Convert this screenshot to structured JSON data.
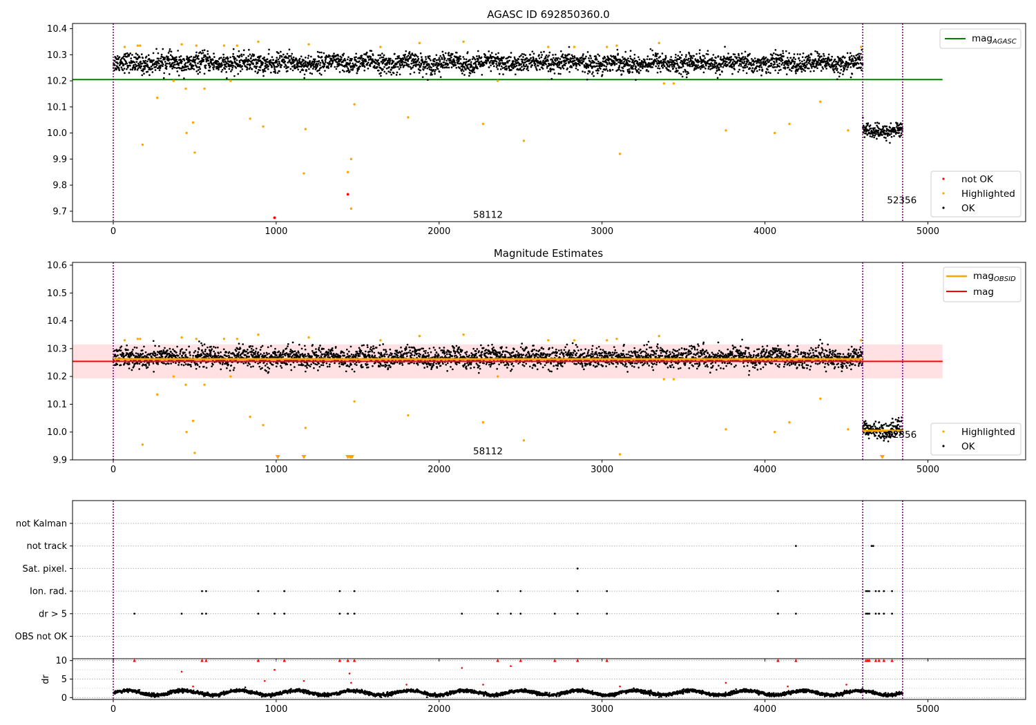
{
  "chart_data": [
    {
      "type": "scatter",
      "title": "AGASC ID 692850360.0",
      "xlabel": "",
      "ylabel": "",
      "xlim": [
        -250,
        5600
      ],
      "ylim": [
        9.66,
        10.42
      ],
      "xticks": [
        0,
        1000,
        2000,
        3000,
        4000,
        5000
      ],
      "yticks": [
        9.7,
        9.8,
        9.9,
        10.0,
        10.1,
        10.2,
        10.3,
        10.4
      ],
      "vlines": [
        0,
        4600,
        4845
      ],
      "grid": false,
      "legends": {
        "top_right": [
          {
            "name": "mag",
            "sub": "AGASC",
            "color": "#008000"
          }
        ],
        "bottom_right": [
          {
            "name": "not OK",
            "color": "#ff0000"
          },
          {
            "name": "Highlighted",
            "color": "#ffa500"
          },
          {
            "name": "OK",
            "color": "#000000"
          }
        ]
      },
      "hlines": [
        {
          "name": "mag_AGASC",
          "y": 10.205,
          "x": [
            -250,
            5090
          ],
          "color": "#008000"
        }
      ],
      "annotations": [
        {
          "text": "58112",
          "x": 2300,
          "y": 9.675
        },
        {
          "text": "52356",
          "x": 4840,
          "y": 9.73
        }
      ],
      "series": [
        {
          "role": "ok",
          "color": "#000000",
          "segments": [
            {
              "x": [
                0,
                4600
              ],
              "mean": 10.268,
              "spread": 0.028
            },
            {
              "x": [
                4600,
                4845
              ],
              "mean": 10.008,
              "spread": 0.022
            }
          ]
        },
        {
          "role": "highlighted",
          "color": "#ffa500",
          "points": [
            [
              70,
              10.33
            ],
            [
              150,
              10.335
            ],
            [
              165,
              10.335
            ],
            [
              180,
              9.955
            ],
            [
              270,
              10.135
            ],
            [
              370,
              10.2
            ],
            [
              420,
              10.34
            ],
            [
              445,
              10.17
            ],
            [
              450,
              10.0
            ],
            [
              490,
              10.04
            ],
            [
              500,
              9.925
            ],
            [
              510,
              10.335
            ],
            [
              560,
              10.17
            ],
            [
              680,
              10.335
            ],
            [
              720,
              10.2
            ],
            [
              760,
              10.335
            ],
            [
              840,
              10.055
            ],
            [
              890,
              10.35
            ],
            [
              920,
              10.025
            ],
            [
              1180,
              10.015
            ],
            [
              1200,
              10.34
            ],
            [
              1170,
              9.845
            ],
            [
              1440,
              9.85
            ],
            [
              1460,
              9.9
            ],
            [
              1480,
              10.11
            ],
            [
              1460,
              9.71
            ],
            [
              1640,
              10.33
            ],
            [
              1810,
              10.06
            ],
            [
              1880,
              10.345
            ],
            [
              2150,
              10.35
            ],
            [
              2270,
              10.035
            ],
            [
              2360,
              10.2
            ],
            [
              2520,
              9.97
            ],
            [
              2670,
              10.33
            ],
            [
              2830,
              10.33
            ],
            [
              3030,
              10.33
            ],
            [
              3090,
              10.335
            ],
            [
              3110,
              9.92
            ],
            [
              3350,
              10.345
            ],
            [
              3380,
              10.19
            ],
            [
              3440,
              10.19
            ],
            [
              3760,
              10.01
            ],
            [
              4060,
              10.0
            ],
            [
              4150,
              10.035
            ],
            [
              4340,
              10.12
            ],
            [
              4510,
              10.01
            ],
            [
              4590,
              10.33
            ]
          ]
        },
        {
          "role": "not_ok",
          "color": "#ff0000",
          "points": [
            [
              990,
              9.675
            ],
            [
              1440,
              9.765
            ]
          ]
        }
      ]
    },
    {
      "type": "scatter",
      "title": "Magnitude Estimates",
      "xlabel": "",
      "ylabel": "",
      "xlim": [
        -250,
        5600
      ],
      "ylim": [
        9.9,
        10.61
      ],
      "xticks": [
        0,
        1000,
        2000,
        3000,
        4000,
        5000
      ],
      "yticks": [
        9.9,
        10.0,
        10.1,
        10.2,
        10.3,
        10.4,
        10.5,
        10.6
      ],
      "vlines": [
        0,
        4600,
        4845
      ],
      "grid": false,
      "legends": {
        "top_right": [
          {
            "name": "mag",
            "sub": "OBSID",
            "color": "#ffa500"
          },
          {
            "name": "mag",
            "sub": "",
            "color": "#ff0000"
          }
        ],
        "bottom_right": [
          {
            "name": "Highlighted",
            "color": "#ffa500"
          },
          {
            "name": "OK",
            "color": "#000000"
          }
        ]
      },
      "band": {
        "y": [
          10.193,
          10.315
        ],
        "x": [
          -250,
          5090
        ],
        "color": "#ffe0e3"
      },
      "hlines": [
        {
          "name": "mag_OBSID",
          "y": 10.262,
          "x": [
            0,
            4600
          ],
          "color": "#ffa500"
        },
        {
          "name": "mag_OBSID",
          "y": 10.005,
          "x": [
            4600,
            4845
          ],
          "color": "#ffa500"
        },
        {
          "name": "mag",
          "y": 10.254,
          "x": [
            -250,
            5090
          ],
          "color": "#ff0000"
        }
      ],
      "annotations": [
        {
          "text": "58112",
          "x": 2300,
          "y": 9.92
        },
        {
          "text": "52356",
          "x": 4840,
          "y": 9.98
        }
      ],
      "markers_below": [
        1010,
        1170,
        1440,
        1455,
        1465,
        4720
      ],
      "series": [
        {
          "role": "ok",
          "color": "#000000",
          "segments": [
            {
              "x": [
                0,
                4600
              ],
              "mean": 10.268,
              "spread": 0.028
            },
            {
              "x": [
                4600,
                4845
              ],
              "mean": 10.008,
              "spread": 0.022
            }
          ]
        },
        {
          "role": "highlighted",
          "color": "#ffa500",
          "points": [
            [
              70,
              10.33
            ],
            [
              150,
              10.335
            ],
            [
              165,
              10.335
            ],
            [
              180,
              9.955
            ],
            [
              270,
              10.135
            ],
            [
              370,
              10.2
            ],
            [
              420,
              10.34
            ],
            [
              445,
              10.17
            ],
            [
              450,
              10.0
            ],
            [
              490,
              10.04
            ],
            [
              500,
              9.925
            ],
            [
              510,
              10.335
            ],
            [
              560,
              10.17
            ],
            [
              680,
              10.335
            ],
            [
              720,
              10.2
            ],
            [
              760,
              10.335
            ],
            [
              840,
              10.055
            ],
            [
              890,
              10.35
            ],
            [
              920,
              10.025
            ],
            [
              1180,
              10.015
            ],
            [
              1200,
              10.34
            ],
            [
              1480,
              10.11
            ],
            [
              1640,
              10.33
            ],
            [
              1810,
              10.06
            ],
            [
              1880,
              10.345
            ],
            [
              2150,
              10.35
            ],
            [
              2270,
              10.035
            ],
            [
              2360,
              10.2
            ],
            [
              2520,
              9.97
            ],
            [
              2670,
              10.33
            ],
            [
              2830,
              10.33
            ],
            [
              3030,
              10.33
            ],
            [
              3090,
              10.335
            ],
            [
              3110,
              9.92
            ],
            [
              3350,
              10.345
            ],
            [
              3380,
              10.19
            ],
            [
              3440,
              10.19
            ],
            [
              3760,
              10.01
            ],
            [
              4060,
              10.0
            ],
            [
              4150,
              10.035
            ],
            [
              4340,
              10.12
            ],
            [
              4510,
              10.01
            ],
            [
              4590,
              10.33
            ]
          ]
        }
      ]
    },
    {
      "type": "scatter",
      "title": "",
      "xlabel": "",
      "ylabel": "",
      "xlim": [
        -250,
        5600
      ],
      "vlines": [
        0,
        4600,
        4845
      ],
      "grid": true,
      "categories": [
        "not Kalman",
        "not track",
        "Sat. pixel.",
        "Ion. rad.",
        "dr > 5",
        "OBS not OK"
      ],
      "flags": {
        "not Kalman": [],
        "not track": [
          4190,
          4655,
          4665
        ],
        "Sat. pixel.": [
          2850
        ],
        "Ion. rad.": [
          545,
          570,
          890,
          1050,
          1390,
          1480,
          2360,
          2500,
          2850,
          3030,
          4080,
          4620,
          4630,
          4640,
          4680,
          4700,
          4730,
          4780
        ],
        "dr > 5": [
          130,
          420,
          545,
          570,
          890,
          990,
          1050,
          1390,
          1440,
          1480,
          2140,
          2360,
          2440,
          2500,
          2710,
          2850,
          3030,
          4080,
          4190,
          4620,
          4630,
          4640,
          4680,
          4700,
          4730,
          4780
        ],
        "OBS not OK": []
      }
    },
    {
      "type": "scatter",
      "title": "",
      "xlabel": "",
      "ylabel": "dr",
      "xlim": [
        -250,
        5600
      ],
      "ylim": [
        -0.5,
        10.5
      ],
      "xticks": [
        0,
        1000,
        2000,
        3000,
        4000,
        5000
      ],
      "yticks": [
        0,
        5,
        10
      ],
      "vlines": [
        0,
        4600,
        4845
      ],
      "grid": true,
      "series": [
        {
          "role": "ok",
          "color": "#000000",
          "x": [
            0,
            4845
          ],
          "mean": 1.3,
          "spread": 0.45
        },
        {
          "role": "flagged",
          "color": "#ff0000",
          "points": [
            [
              130,
              10
            ],
            [
              420,
              7
            ],
            [
              490,
              3
            ],
            [
              545,
              10
            ],
            [
              570,
              10
            ],
            [
              890,
              10
            ],
            [
              930,
              4.5
            ],
            [
              990,
              7.5
            ],
            [
              1050,
              10
            ],
            [
              1170,
              4.5
            ],
            [
              1390,
              10
            ],
            [
              1440,
              10
            ],
            [
              1450,
              6.5
            ],
            [
              1460,
              4
            ],
            [
              1480,
              10
            ],
            [
              1800,
              3.5
            ],
            [
              2140,
              8
            ],
            [
              2270,
              3.5
            ],
            [
              2360,
              10
            ],
            [
              2440,
              8.5
            ],
            [
              2500,
              10
            ],
            [
              2710,
              10
            ],
            [
              2850,
              10
            ],
            [
              3030,
              10
            ],
            [
              3110,
              3
            ],
            [
              3760,
              4
            ],
            [
              4080,
              10
            ],
            [
              4140,
              3
            ],
            [
              4190,
              10
            ],
            [
              4500,
              3.5
            ],
            [
              4620,
              10
            ],
            [
              4630,
              10
            ],
            [
              4640,
              10
            ],
            [
              4680,
              10
            ],
            [
              4700,
              10
            ],
            [
              4730,
              10
            ],
            [
              4780,
              10
            ]
          ]
        }
      ]
    }
  ]
}
